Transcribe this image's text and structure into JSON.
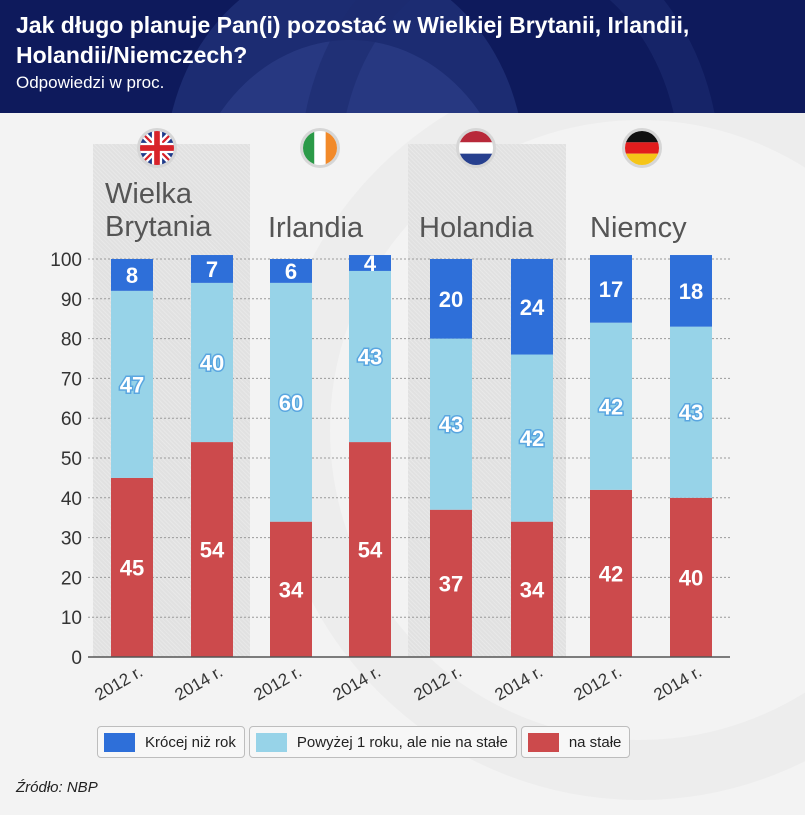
{
  "header": {
    "title": "Jak długo planuje Pan(i) pozostać w Wielkiej Brytanii, Irlandii, Holandii/Niemczech?",
    "subtitle": "Odpowiedzi w proc."
  },
  "countries": [
    {
      "name": "Wielka Brytania",
      "flag": "uk-flag-icon"
    },
    {
      "name": "Irlandia",
      "flag": "ireland-flag-icon"
    },
    {
      "name": "Holandia",
      "flag": "netherlands-flag-icon"
    },
    {
      "name": "Niemcy",
      "flag": "germany-flag-icon"
    }
  ],
  "chart_data": {
    "type": "bar",
    "stacked": true,
    "title": "Jak długo planuje Pan(i) pozostać w Wielkiej Brytanii, Irlandii, Holandii/Niemczech?",
    "subtitle": "Odpowiedzi w proc.",
    "groups": [
      "Wielka Brytania",
      "Irlandia",
      "Holandia",
      "Niemcy"
    ],
    "categories": [
      "2012 r.",
      "2014 r.",
      "2012 r.",
      "2014 r.",
      "2012 r.",
      "2014 r.",
      "2012 r.",
      "2014 r."
    ],
    "series": [
      {
        "name": "na stałe",
        "color": "#cc4a4c",
        "values": [
          45,
          54,
          34,
          54,
          37,
          34,
          42,
          40
        ]
      },
      {
        "name": "Powyżej 1 roku, ale nie na stałe",
        "color": "#97d3e8",
        "values": [
          47,
          40,
          60,
          43,
          43,
          42,
          42,
          43
        ]
      },
      {
        "name": "Krócej niż rok",
        "color": "#2e6fd9",
        "values": [
          8,
          7,
          6,
          4,
          20,
          24,
          17,
          18
        ]
      }
    ],
    "xlabel": "",
    "ylabel": "",
    "ylim": [
      0,
      100
    ],
    "yticks": [
      0,
      10,
      20,
      30,
      40,
      50,
      60,
      70,
      80,
      90,
      100
    ],
    "grid": true,
    "legend_position": "bottom",
    "legend": [
      "Krócej niż rok",
      "Powyżej 1 roku, ale nie na stałe",
      "na stałe"
    ]
  },
  "legend": [
    {
      "label": "Krócej niż rok",
      "color": "#2e6fd9"
    },
    {
      "label": "Powyżej 1 roku, ale nie na stałe",
      "color": "#97d3e8"
    },
    {
      "label": "na stałe",
      "color": "#cc4a4c"
    }
  ],
  "source": "Źródło: NBP"
}
